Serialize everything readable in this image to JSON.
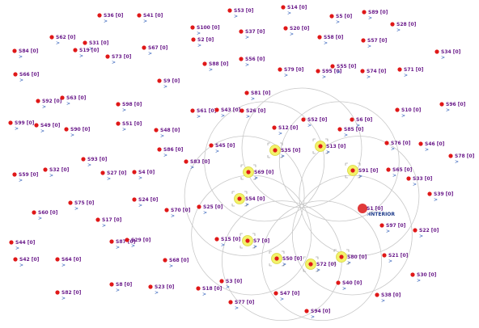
{
  "nodes": [
    {
      "label": "S36 [0]"
    },
    {
      "label": "S41 [0]"
    },
    {
      "label": "S53 [0]"
    },
    {
      "label": "S14 [0]"
    },
    {
      "label": "S5 [0]"
    },
    {
      "label": "S89 [0]"
    },
    {
      "label": "S28 [0]"
    },
    {
      "label": "S100 [0]"
    },
    {
      "label": "S37 [0]"
    },
    {
      "label": "S20 [0]"
    },
    {
      "label": "S58 [0]"
    },
    {
      "label": "S57 [0]"
    },
    {
      "label": "S34 [0]"
    },
    {
      "label": "S62 [0]"
    },
    {
      "label": "S31 [0]"
    },
    {
      "label": "S19 [0]"
    },
    {
      "label": "S84 [0]"
    },
    {
      "label": "S73 [0]"
    },
    {
      "label": "S67 [0]"
    },
    {
      "label": "S2 [0]"
    },
    {
      "label": "S88 [0]"
    },
    {
      "label": "S56 [0]"
    },
    {
      "label": "S79 [0]"
    },
    {
      "label": "S95 [0]"
    },
    {
      "label": "S55 [0]"
    },
    {
      "label": "S74 [0]"
    },
    {
      "label": "S71 [0]"
    },
    {
      "label": "S66 [0]"
    },
    {
      "label": "S9 [0]"
    },
    {
      "label": "S81 [0]"
    },
    {
      "label": "S92 [0]"
    },
    {
      "label": "S63 [0]"
    },
    {
      "label": "S98 [0]"
    },
    {
      "label": "S61 [0]"
    },
    {
      "label": "S43 [0]"
    },
    {
      "label": "S26 [0]"
    },
    {
      "label": "S52 [0]"
    },
    {
      "label": "S6 [0]"
    },
    {
      "label": "S10 [0]"
    },
    {
      "label": "S96 [0]"
    },
    {
      "label": "S99 [0]"
    },
    {
      "label": "S49 [0]"
    },
    {
      "label": "S90 [0]"
    },
    {
      "label": "S51 [0]"
    },
    {
      "label": "S48 [0]"
    },
    {
      "label": "S12 [0]"
    },
    {
      "label": "S85 [0]"
    },
    {
      "label": "S45 [0]"
    },
    {
      "label": "S35 [0]",
      "selected": true
    },
    {
      "label": "S13 [0]",
      "selected": true
    },
    {
      "label": "S76 [0]"
    },
    {
      "label": "S46 [0]"
    },
    {
      "label": "S78 [0]"
    },
    {
      "label": "S86 [0]"
    },
    {
      "label": "S93 [0]"
    },
    {
      "label": "S83 [0]"
    },
    {
      "label": "S69 [0]",
      "selected": true
    },
    {
      "label": "S91 [0]",
      "selected": true
    },
    {
      "label": "S65 [0]"
    },
    {
      "label": "S33 [0]"
    },
    {
      "label": "S59 [0]"
    },
    {
      "label": "S32 [0]"
    },
    {
      "label": "S27 [0]"
    },
    {
      "label": "S4 [0]"
    },
    {
      "label": "S54 [0]",
      "selected": true
    },
    {
      "label": "S39 [0]"
    },
    {
      "label": "S75 [0]"
    },
    {
      "label": "S24 [0]"
    },
    {
      "label": "S1 [0]"
    },
    {
      "label": "S60 [0]"
    },
    {
      "label": "S70 [0]"
    },
    {
      "label": "S25 [0]"
    },
    {
      "label": "S17 [0]"
    },
    {
      "label": "S97 [0]"
    },
    {
      "label": "S22 [0]"
    },
    {
      "label": "S44 [0]"
    },
    {
      "label": "S87 [0]"
    },
    {
      "label": "S29 [0]"
    },
    {
      "label": "S15 [0]"
    },
    {
      "label": "S7 [0]",
      "selected": true
    },
    {
      "label": "S42 [0]"
    },
    {
      "label": "S64 [0]"
    },
    {
      "label": "S68 [0]"
    },
    {
      "label": "S50 [0]",
      "selected": true
    },
    {
      "label": "S72 [0]",
      "selected": true
    },
    {
      "label": "S80 [0]",
      "selected": true
    },
    {
      "label": "S21 [0]"
    },
    {
      "label": "S30 [0]"
    },
    {
      "label": "S3 [0]"
    },
    {
      "label": "S8 [0]"
    },
    {
      "label": "S23 [0]"
    },
    {
      "label": "S18 [0]"
    },
    {
      "label": "S40 [0]"
    },
    {
      "label": "S82 [0]"
    },
    {
      "label": "S47 [0]"
    },
    {
      "label": "S38 [0]"
    },
    {
      "label": "S77 [0]"
    },
    {
      "label": "S94 [0]"
    }
  ],
  "caret": ">",
  "interior": "INTERIOR"
}
